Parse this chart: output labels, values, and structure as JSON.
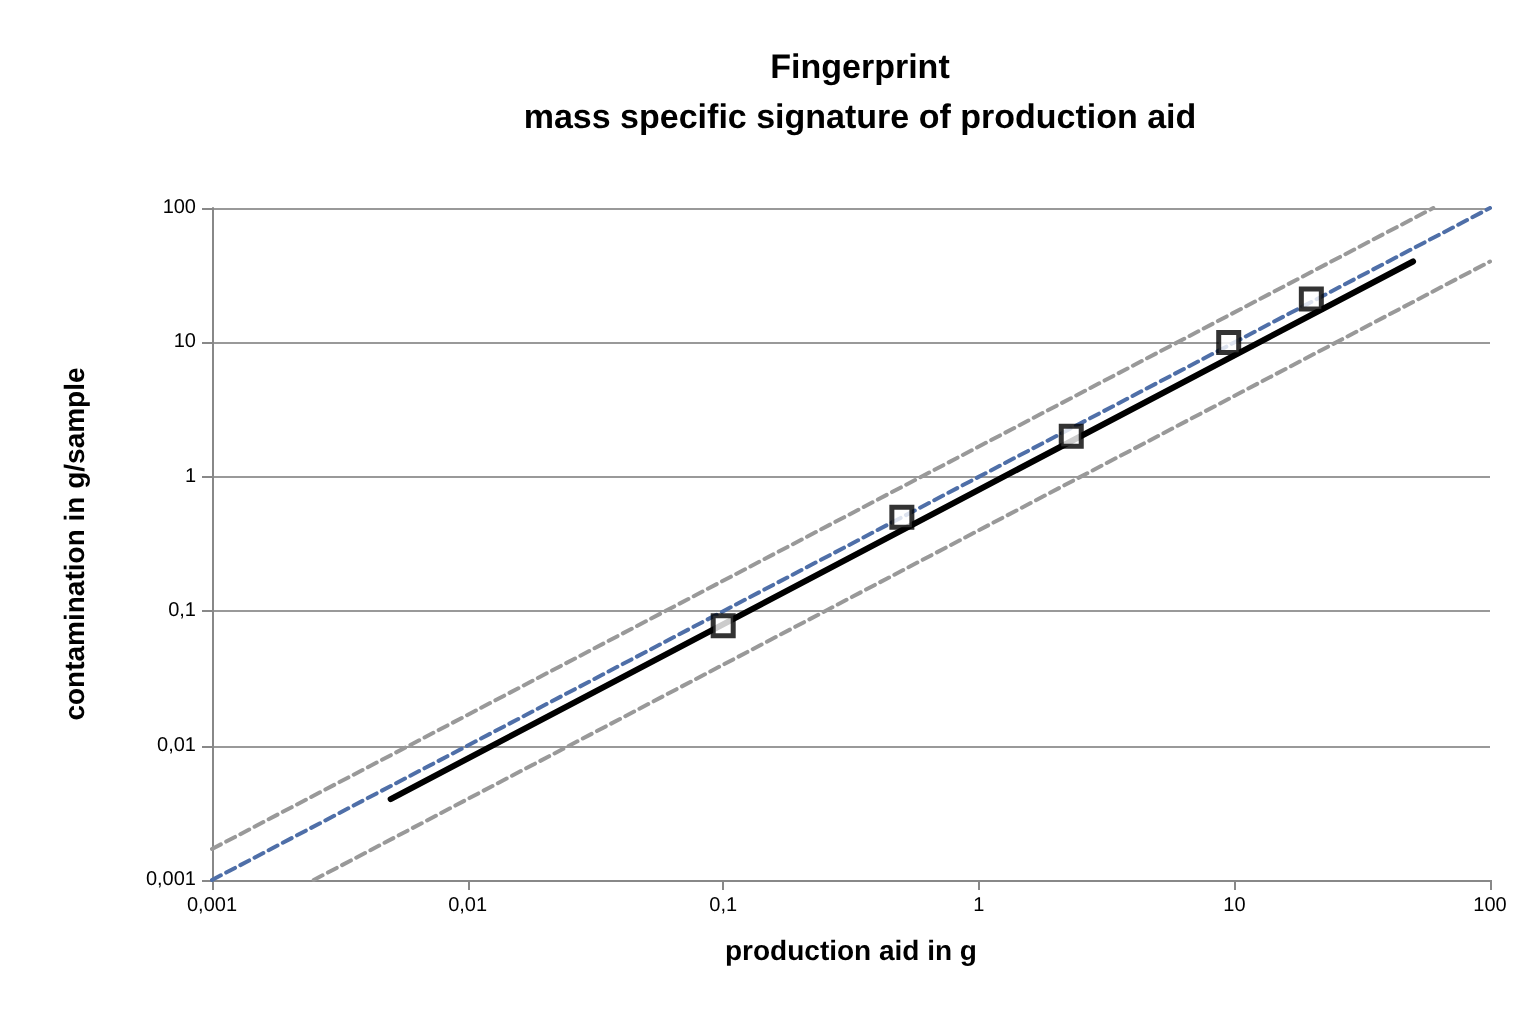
{
  "chart_data": {
    "type": "line",
    "title": "Fingerprint",
    "subtitle": "mass specific signature of production aid",
    "xlabel": "production aid in g",
    "ylabel": "contamination in g/sample",
    "log": "xy",
    "grid": "y",
    "xlim": [
      0.001,
      100
    ],
    "ylim": [
      0.001,
      100
    ],
    "xticks": [
      {
        "value": 0.001,
        "label": "0,001"
      },
      {
        "value": 0.01,
        "label": "0,01"
      },
      {
        "value": 0.1,
        "label": "0,1"
      },
      1,
      10,
      100
    ],
    "yticks": [
      {
        "value": 0.001,
        "label": "0,001"
      },
      {
        "value": 0.01,
        "label": "0,01"
      },
      {
        "value": 0.1,
        "label": "0,1"
      },
      1,
      10,
      100
    ],
    "series": [
      {
        "color": "#999999",
        "line_style": "dashed",
        "marker": "none",
        "x": [
          0.001,
          60
        ],
        "values": [
          0.0017,
          100
        ]
      },
      {
        "color": "#999999",
        "line_style": "dashed",
        "marker": "none",
        "x": [
          0.0025,
          100
        ],
        "values": [
          0.001,
          40
        ]
      },
      {
        "color": "#4f6fa8",
        "line_style": "dashed",
        "marker": "none",
        "x": [
          0.001,
          100
        ],
        "values": [
          0.001,
          100
        ]
      },
      {
        "color": "#000000",
        "line_style": "solid",
        "marker": "none",
        "x": [
          0.005,
          50
        ],
        "values": [
          0.004,
          40
        ]
      },
      {
        "type": "scatter",
        "color": "#000000",
        "marker": "square",
        "x": [
          0.1,
          0.5,
          2.3,
          9.5,
          20
        ],
        "values": [
          0.078,
          0.5,
          2,
          10,
          21
        ]
      }
    ]
  }
}
